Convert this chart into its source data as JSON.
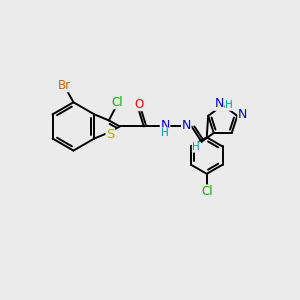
{
  "bg_color": "#ebebeb",
  "bond_color": "#000000",
  "bond_width": 1.4,
  "atom_colors": {
    "Br": "#cc6600",
    "Cl": "#00aa00",
    "Cl2": "#00aa00",
    "S": "#aaaa00",
    "O": "#ff0000",
    "N": "#0000cc",
    "H": "#009999",
    "C": "#000000"
  },
  "font_size": 8.5,
  "fig_size": [
    3.0,
    3.0
  ],
  "dpi": 100
}
